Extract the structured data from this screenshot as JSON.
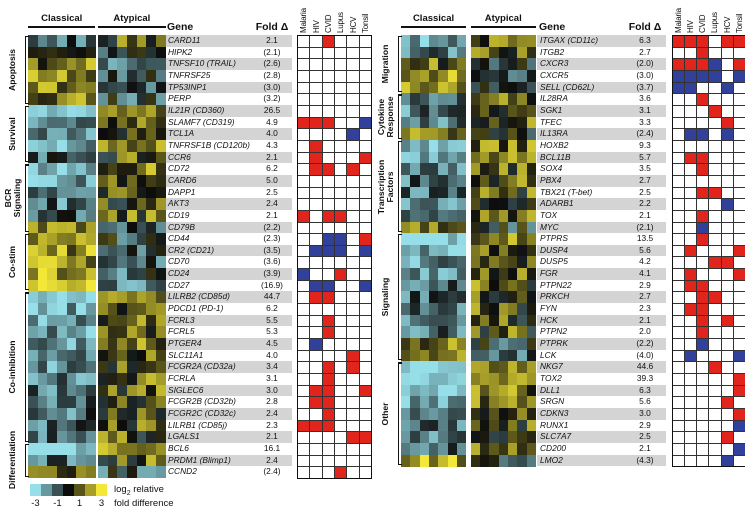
{
  "colors": {
    "assoc_up": "#e1251c",
    "assoc_down": "#30409b",
    "row_stripe": "#d4d4d4",
    "heatmap_low": "#96dee8",
    "heatmap_mid": "#0c0c0c",
    "heatmap_high": "#f3e737"
  },
  "chart_data": {
    "type": "heatmap",
    "column_group_labels": [
      "Classical",
      "Atypical"
    ],
    "columns_per_group": 7,
    "gene_header": "Gene",
    "fold_header": "Fold Δ",
    "disease_columns": [
      "Malaria",
      "HIV",
      "CVID",
      "Lupus",
      "HCV",
      "Tonsil"
    ],
    "legend": {
      "swatches": [
        "#96dee8",
        "#68989f",
        "#3a5255",
        "#0c0c0c",
        "#59551a",
        "#a69e29",
        "#f3e737"
      ],
      "ticks": [
        "-3",
        "-1",
        "1",
        "3"
      ],
      "log_prefix": "log",
      "log_sub": "2",
      "log_suffix": " relative",
      "fold_label": "fold difference"
    },
    "panels": [
      {
        "categories": [
          {
            "label": "Apoptosis",
            "from": 0,
            "to": 5
          },
          {
            "label": "Survival",
            "from": 6,
            "to": 10
          },
          {
            "label": "BCR\nSignaling",
            "from": 11,
            "to": 16
          },
          {
            "label": "Co-stim",
            "from": 17,
            "to": 21
          },
          {
            "label": "Co-inhibition",
            "from": 22,
            "to": 34
          },
          {
            "label": "Differentiation",
            "from": 35,
            "to": 37
          }
        ],
        "rows": [
          {
            "g": "CARD11",
            "p": "",
            "f": "2.1",
            "a": [
              0,
              0,
              1,
              0,
              0,
              0
            ]
          },
          {
            "g": "HIPK2",
            "p": "",
            "f": "(2.1)",
            "a": [
              0,
              0,
              0,
              0,
              0,
              0
            ]
          },
          {
            "g": "TNFSF10",
            "p": "(TRAIL)",
            "f": "(2.6)",
            "a": [
              0,
              0,
              0,
              0,
              0,
              0
            ]
          },
          {
            "g": "TNFRSF25",
            "p": "",
            "f": "(2.8)",
            "a": [
              0,
              0,
              0,
              0,
              0,
              0
            ]
          },
          {
            "g": "TP53INP1",
            "p": "",
            "f": "(3.0)",
            "a": [
              0,
              0,
              0,
              0,
              0,
              0
            ]
          },
          {
            "g": "PERP",
            "p": "",
            "f": "(3.2)",
            "a": [
              0,
              0,
              0,
              0,
              0,
              0
            ]
          },
          {
            "g": "IL21R",
            "p": "(CD360)",
            "f": "26.5",
            "a": [
              0,
              0,
              0,
              0,
              0,
              0
            ]
          },
          {
            "g": "SLAMF7",
            "p": "(CD319)",
            "f": "4.9",
            "a": [
              1,
              1,
              1,
              0,
              0,
              -1
            ]
          },
          {
            "g": "TCL1A",
            "p": "",
            "f": "4.0",
            "a": [
              0,
              0,
              0,
              0,
              -1,
              0
            ]
          },
          {
            "g": "TNFRSF1B",
            "p": "(CD120b)",
            "f": "4.3",
            "a": [
              0,
              1,
              0,
              0,
              0,
              0
            ]
          },
          {
            "g": "CCR6",
            "p": "",
            "f": "2.1",
            "a": [
              0,
              1,
              0,
              0,
              0,
              1
            ]
          },
          {
            "g": "CD72",
            "p": "",
            "f": "6.2",
            "a": [
              0,
              1,
              1,
              0,
              1,
              0
            ]
          },
          {
            "g": "CARD6",
            "p": "",
            "f": "5.0",
            "a": [
              0,
              0,
              0,
              0,
              0,
              0
            ]
          },
          {
            "g": "DAPP1",
            "p": "",
            "f": "2.5",
            "a": [
              0,
              0,
              0,
              0,
              0,
              0
            ]
          },
          {
            "g": "AKT3",
            "p": "",
            "f": "2.4",
            "a": [
              0,
              0,
              0,
              0,
              0,
              0
            ]
          },
          {
            "g": "CD19",
            "p": "",
            "f": "2.1",
            "a": [
              1,
              0,
              1,
              1,
              0,
              0
            ]
          },
          {
            "g": "CD79B",
            "p": "",
            "f": "(2.2)",
            "a": [
              0,
              0,
              0,
              0,
              0,
              0
            ]
          },
          {
            "g": "CD44",
            "p": "",
            "f": "(2.3)",
            "a": [
              0,
              0,
              -1,
              -1,
              0,
              1
            ]
          },
          {
            "g": "CR2",
            "p": "(CD21)",
            "f": "(3.5)",
            "a": [
              0,
              -1,
              -1,
              -1,
              0,
              -1
            ]
          },
          {
            "g": "CD70",
            "p": "",
            "f": "(3.6)",
            "a": [
              0,
              0,
              0,
              0,
              0,
              0
            ]
          },
          {
            "g": "CD24",
            "p": "",
            "f": "(3.9)",
            "a": [
              -1,
              0,
              0,
              1,
              0,
              0
            ]
          },
          {
            "g": "CD27",
            "p": "",
            "f": "(16.9)",
            "a": [
              0,
              -1,
              -1,
              0,
              0,
              -1
            ]
          },
          {
            "g": "LILRB2",
            "p": "(CD85d)",
            "f": "44.7",
            "a": [
              0,
              1,
              1,
              0,
              0,
              0
            ]
          },
          {
            "g": "PDCD1",
            "p": "(PD-1)",
            "f": "6.2",
            "a": [
              0,
              0,
              0,
              0,
              0,
              0
            ]
          },
          {
            "g": "FCRL3",
            "p": "",
            "f": "5.5",
            "a": [
              0,
              0,
              1,
              0,
              0,
              0
            ]
          },
          {
            "g": "FCRL5",
            "p": "",
            "f": "5.3",
            "a": [
              0,
              0,
              1,
              0,
              0,
              0
            ]
          },
          {
            "g": "PTGER4",
            "p": "",
            "f": "4.5",
            "a": [
              0,
              -1,
              0,
              0,
              0,
              0
            ]
          },
          {
            "g": "SLC11A1",
            "p": "",
            "f": "4.0",
            "a": [
              0,
              0,
              0,
              0,
              1,
              0
            ]
          },
          {
            "g": "FCGR2A",
            "p": "(CD32a)",
            "f": "3.4",
            "a": [
              0,
              0,
              1,
              0,
              1,
              0
            ]
          },
          {
            "g": "FCRLA",
            "p": "",
            "f": "3.1",
            "a": [
              0,
              0,
              1,
              0,
              0,
              0
            ]
          },
          {
            "g": "SIGLEC6",
            "p": "",
            "f": "3.0",
            "a": [
              0,
              1,
              1,
              0,
              0,
              1
            ]
          },
          {
            "g": "FCGR2B",
            "p": "(CD32b)",
            "f": "2.8",
            "a": [
              0,
              1,
              1,
              0,
              0,
              0
            ]
          },
          {
            "g": "FCGR2C",
            "p": "(CD32c)",
            "f": "2.4",
            "a": [
              0,
              0,
              1,
              0,
              0,
              0
            ]
          },
          {
            "g": "LILRB1",
            "p": "(CD85j)",
            "f": "2.3",
            "a": [
              1,
              1,
              1,
              0,
              0,
              0
            ]
          },
          {
            "g": "LGALS1",
            "p": "",
            "f": "2.1",
            "a": [
              0,
              0,
              0,
              0,
              1,
              1
            ]
          },
          {
            "g": "BCL6",
            "p": "",
            "f": "16.1",
            "a": [
              0,
              0,
              0,
              0,
              0,
              0
            ]
          },
          {
            "g": "PRDM1",
            "p": "(Blimp1)",
            "f": "2.4",
            "a": [
              0,
              0,
              0,
              0,
              0,
              0
            ]
          },
          {
            "g": "CCND2",
            "p": "",
            "f": "(2.4)",
            "a": [
              0,
              0,
              0,
              1,
              0,
              0
            ]
          }
        ]
      },
      {
        "categories": [
          {
            "label": "Migration",
            "from": 0,
            "to": 4
          },
          {
            "label": "Cytokine\nResponse",
            "from": 5,
            "to": 8
          },
          {
            "label": "Transcription\nFactors",
            "from": 9,
            "to": 16
          },
          {
            "label": "Signaling",
            "from": 17,
            "to": 27
          },
          {
            "label": "Other",
            "from": 28,
            "to": 36
          }
        ],
        "rows": [
          {
            "g": "ITGAX",
            "p": "(CD11c)",
            "f": "6.3",
            "a": [
              1,
              1,
              1,
              0,
              1,
              1
            ]
          },
          {
            "g": "ITGB2",
            "p": "",
            "f": "2.7",
            "a": [
              0,
              0,
              1,
              0,
              0,
              0
            ]
          },
          {
            "g": "CXCR3",
            "p": "",
            "f": "(2.0)",
            "a": [
              1,
              1,
              1,
              -1,
              0,
              1
            ]
          },
          {
            "g": "CXCR5",
            "p": "",
            "f": "(3.0)",
            "a": [
              -1,
              -1,
              -1,
              -1,
              0,
              -1
            ]
          },
          {
            "g": "SELL",
            "p": "(CD62L)",
            "f": "(3.7)",
            "a": [
              -1,
              -1,
              0,
              0,
              -1,
              0
            ]
          },
          {
            "g": "IL28RA",
            "p": "",
            "f": "3.6",
            "a": [
              0,
              0,
              1,
              0,
              0,
              0
            ]
          },
          {
            "g": "SGK1",
            "p": "",
            "f": "3.1",
            "a": [
              0,
              0,
              0,
              1,
              0,
              0
            ]
          },
          {
            "g": "TFEC",
            "p": "",
            "f": "3.3",
            "a": [
              0,
              0,
              0,
              0,
              1,
              0
            ]
          },
          {
            "g": "IL13RA",
            "p": "",
            "f": "(2.4)",
            "a": [
              0,
              -1,
              -1,
              0,
              -1,
              0
            ]
          },
          {
            "g": "HOXB2",
            "p": "",
            "f": "9.3",
            "a": [
              0,
              0,
              0,
              0,
              0,
              0
            ]
          },
          {
            "g": "BCL11B",
            "p": "",
            "f": "5.7",
            "a": [
              0,
              1,
              1,
              0,
              0,
              0
            ]
          },
          {
            "g": "SOX4",
            "p": "",
            "f": "3.5",
            "a": [
              0,
              0,
              1,
              0,
              0,
              0
            ]
          },
          {
            "g": "PBX4",
            "p": "",
            "f": "2.7",
            "a": [
              0,
              0,
              0,
              0,
              0,
              0
            ]
          },
          {
            "g": "TBX21",
            "p": "(T-bet)",
            "f": "2.5",
            "a": [
              0,
              0,
              1,
              1,
              0,
              0
            ]
          },
          {
            "g": "ADARB1",
            "p": "",
            "f": "2.2",
            "a": [
              0,
              0,
              0,
              0,
              -1,
              0
            ]
          },
          {
            "g": "TOX",
            "p": "",
            "f": "2.1",
            "a": [
              0,
              0,
              1,
              0,
              0,
              0
            ]
          },
          {
            "g": "MYC",
            "p": "",
            "f": "(2.1)",
            "a": [
              0,
              0,
              -1,
              0,
              0,
              0
            ]
          },
          {
            "g": "PTPRS",
            "p": "",
            "f": "13.5",
            "a": [
              0,
              0,
              1,
              0,
              0,
              0
            ]
          },
          {
            "g": "DUSP4",
            "p": "",
            "f": "5.6",
            "a": [
              0,
              1,
              0,
              0,
              0,
              1
            ]
          },
          {
            "g": "DUSP5",
            "p": "",
            "f": "4.2",
            "a": [
              0,
              0,
              0,
              1,
              1,
              0
            ]
          },
          {
            "g": "FGR",
            "p": "",
            "f": "4.1",
            "a": [
              0,
              1,
              0,
              0,
              0,
              1
            ]
          },
          {
            "g": "PTPN22",
            "p": "",
            "f": "2.9",
            "a": [
              0,
              1,
              1,
              0,
              0,
              0
            ]
          },
          {
            "g": "PRKCH",
            "p": "",
            "f": "2.7",
            "a": [
              0,
              0,
              1,
              1,
              0,
              0
            ]
          },
          {
            "g": "FYN",
            "p": "",
            "f": "2.3",
            "a": [
              0,
              1,
              1,
              0,
              0,
              0
            ]
          },
          {
            "g": "HCK",
            "p": "",
            "f": "2.1",
            "a": [
              0,
              0,
              1,
              0,
              1,
              0
            ]
          },
          {
            "g": "PTPN2",
            "p": "",
            "f": "2.0",
            "a": [
              0,
              0,
              1,
              0,
              0,
              0
            ]
          },
          {
            "g": "PTPRK",
            "p": "",
            "f": "(2.2)",
            "a": [
              0,
              0,
              -1,
              0,
              0,
              0
            ]
          },
          {
            "g": "LCK",
            "p": "",
            "f": "(4.0)",
            "a": [
              0,
              -1,
              0,
              0,
              0,
              -1
            ]
          },
          {
            "g": "NKG7",
            "p": "",
            "f": "44.6",
            "a": [
              0,
              0,
              0,
              1,
              0,
              0
            ]
          },
          {
            "g": "TOX2",
            "p": "",
            "f": "39.3",
            "a": [
              0,
              0,
              0,
              0,
              0,
              1
            ]
          },
          {
            "g": "DLL1",
            "p": "",
            "f": "6.3",
            "a": [
              0,
              0,
              0,
              0,
              0,
              1
            ]
          },
          {
            "g": "SRGN",
            "p": "",
            "f": "5.6",
            "a": [
              0,
              0,
              0,
              0,
              1,
              0
            ]
          },
          {
            "g": "CDKN3",
            "p": "",
            "f": "3.0",
            "a": [
              0,
              0,
              0,
              0,
              0,
              1
            ]
          },
          {
            "g": "RUNX1",
            "p": "",
            "f": "2.9",
            "a": [
              0,
              0,
              0,
              0,
              0,
              -1
            ]
          },
          {
            "g": "SLC7A7",
            "p": "",
            "f": "2.5",
            "a": [
              0,
              0,
              0,
              0,
              1,
              0
            ]
          },
          {
            "g": "CD200",
            "p": "",
            "f": "2.1",
            "a": [
              0,
              0,
              0,
              0,
              0,
              -1
            ]
          },
          {
            "g": "LMO2",
            "p": "",
            "f": "(4.3)",
            "a": [
              0,
              0,
              0,
              0,
              -1,
              0
            ]
          }
        ]
      }
    ]
  }
}
